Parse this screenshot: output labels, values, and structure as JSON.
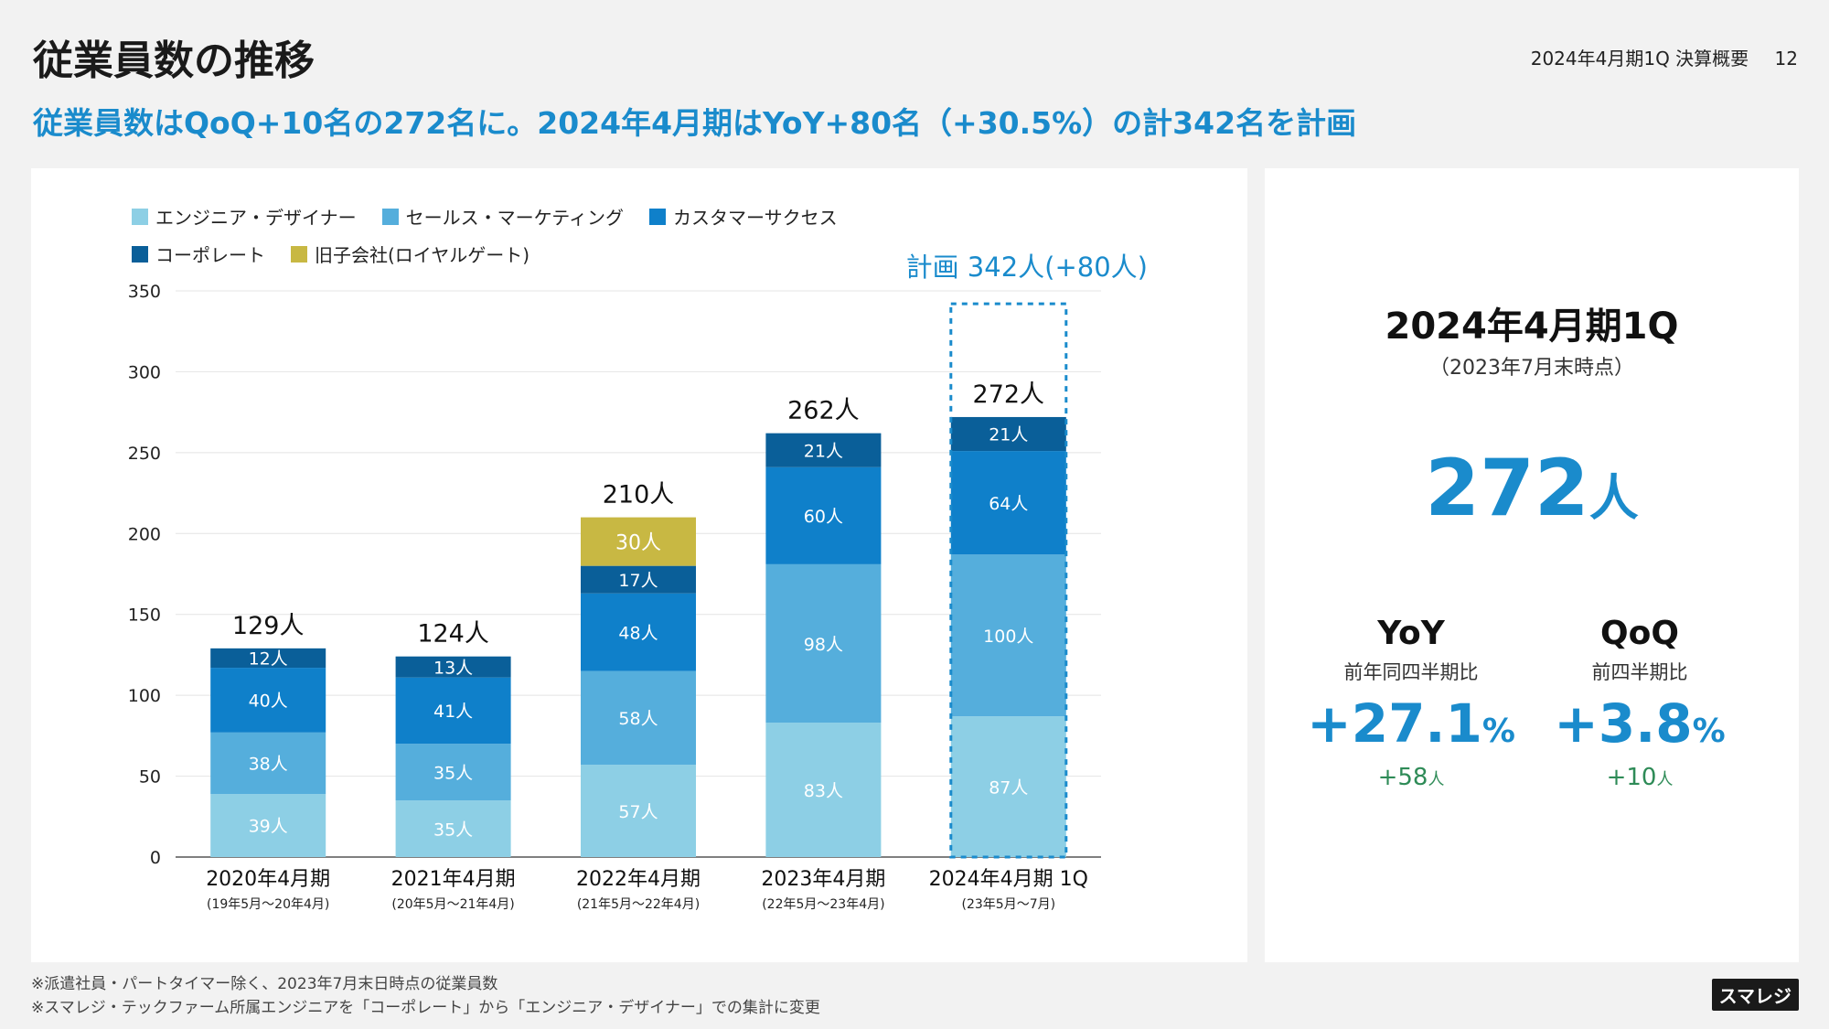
{
  "header": {
    "title": "従業員数の推移",
    "meta": "2024年4月期1Q 決算概要",
    "page_number": "12"
  },
  "subtitle": "従業員数はQoQ+10名の272名に。2024年4月期はYoY+80名（+30.5%）の計342名を計画",
  "colors": {
    "engineer": "#8dcfe5",
    "sales": "#55aedc",
    "cs": "#0f80ca",
    "corporate": "#0a5f99",
    "former": "#c8b843",
    "plan": "#1a8bcc",
    "accent": "#1a8bcc",
    "green": "#2e8b57"
  },
  "chart_data": {
    "type": "bar",
    "stacked": true,
    "categories": [
      "2020年4月期",
      "2021年4月期",
      "2022年4月期",
      "2023年4月期",
      "2024年4月期 1Q"
    ],
    "category_periods": [
      "(19年5月〜20年4月)",
      "(20年5月〜21年4月)",
      "(21年5月〜22年4月)",
      "(22年5月〜23年4月)",
      "(23年5月〜7月)"
    ],
    "series": [
      {
        "name": "エンジニア・デザイナー",
        "key": "engineer",
        "values": [
          39,
          35,
          57,
          83,
          87
        ]
      },
      {
        "name": "セールス・マーケティング",
        "key": "sales",
        "values": [
          38,
          35,
          58,
          98,
          100
        ]
      },
      {
        "name": "カスタマーサクセス",
        "key": "cs",
        "values": [
          40,
          41,
          48,
          60,
          64
        ]
      },
      {
        "name": "コーポレート",
        "key": "corporate",
        "values": [
          12,
          13,
          17,
          21,
          21
        ]
      },
      {
        "name": "旧子会社(ロイヤルゲート)",
        "key": "former",
        "values": [
          0,
          0,
          30,
          0,
          0
        ]
      }
    ],
    "data_labels": [
      [
        "39人",
        "38人",
        "40人",
        "12人",
        ""
      ],
      [
        "35人",
        "35人",
        "41人",
        "13人",
        ""
      ],
      [
        "57人",
        "58人",
        "48人",
        "17人",
        "30人"
      ],
      [
        "83人",
        "98人",
        "60人",
        "21人",
        ""
      ],
      [
        "87人",
        "100人",
        "64人",
        "21人",
        ""
      ]
    ],
    "totals": [
      129,
      124,
      210,
      262,
      272
    ],
    "total_labels": [
      "129人",
      "124人",
      "210人",
      "262人",
      "272人"
    ],
    "plan": {
      "value": 342,
      "label": "計画 342人(+80人)"
    },
    "y_ticks": [
      0,
      50,
      100,
      150,
      200,
      250,
      300,
      350
    ],
    "ylim": [
      0,
      350
    ],
    "grid": true,
    "legend_position": "top-left"
  },
  "summary": {
    "title": "2024年4月期1Q",
    "as_of": "（2023年7月末時点）",
    "count": "272",
    "count_unit": "人",
    "yoy": {
      "label": "YoY",
      "desc": "前年同四半期比",
      "value": "+27.1",
      "pct": "%",
      "diff": "+58",
      "diff_unit": "人"
    },
    "qoq": {
      "label": "QoQ",
      "desc": "前四半期比",
      "value": "+3.8",
      "pct": "%",
      "diff": "+10",
      "diff_unit": "人"
    }
  },
  "footnotes": [
    "※派遣社員・パートタイマー除く、2023年7月末日時点の従業員数",
    "※スマレジ・テックファーム所属エンジニアを「コーポレート」から「エンジニア・デザイナー」での集計に変更"
  ],
  "logo": "スマレジ"
}
